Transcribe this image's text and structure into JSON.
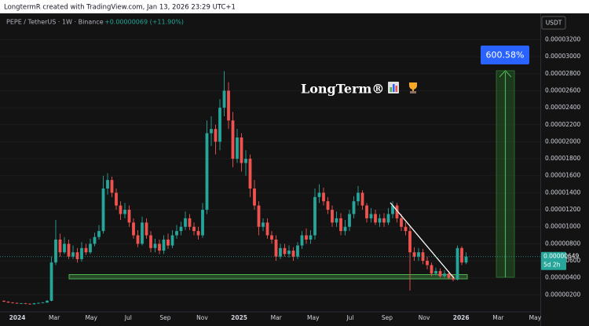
{
  "header": "LongtermR created with TradingView.com, Jan 13, 2026 23:29 UTC+1",
  "chart_data": {
    "type": "candlestick",
    "symbol": "PEPE / TetherUS · 1W · Binance",
    "change": "+0.00000069 (+11.90%)",
    "currency": "USDT",
    "watermark": "LongTerm®",
    "measure_label": "600.58%",
    "countdown": "5d 2h",
    "last_price": {
      "value": 6.49e-06,
      "label": "0.00000649"
    },
    "up_color": "#26a69a",
    "down_color": "#ef5350",
    "ylim": [
      0,
      3.5e-05
    ],
    "yticks": [
      {
        "value": 3.2e-05,
        "label": "0.00003200"
      },
      {
        "value": 3e-05,
        "label": "0.00003000"
      },
      {
        "value": 2.8e-05,
        "label": "0.00002800"
      },
      {
        "value": 2.6e-05,
        "label": "0.00002600"
      },
      {
        "value": 2.4e-05,
        "label": "0.00002400"
      },
      {
        "value": 2.2e-05,
        "label": "0.00002200"
      },
      {
        "value": 2e-05,
        "label": "0.00002000"
      },
      {
        "value": 1.8e-05,
        "label": "0.00001800"
      },
      {
        "value": 1.6e-05,
        "label": "0.00001600"
      },
      {
        "value": 1.4e-05,
        "label": "0.00001400"
      },
      {
        "value": 1.2e-05,
        "label": "0.00001200"
      },
      {
        "value": 1e-05,
        "label": "0.00001000"
      },
      {
        "value": 8e-06,
        "label": "0.00000800"
      },
      {
        "value": 6e-06,
        "label": "0.00000600"
      },
      {
        "value": 4e-06,
        "label": "0.00000400"
      },
      {
        "value": 2e-06,
        "label": "0.00000200"
      }
    ],
    "grid": true,
    "xlabels": [
      "2024",
      "Mar",
      "May",
      "Jul",
      "Sep",
      "Nov",
      "2025",
      "Mar",
      "May",
      "Jul",
      "Sep",
      "Nov",
      "2026",
      "Mar",
      "May"
    ],
    "open": [
      1.3e-06,
      1.2e-06,
      1.1e-06,
      1.05e-06,
      1e-06,
      1e-06,
      9.5e-07,
      9e-07,
      1e-06,
      1.05e-06,
      1.1e-06,
      1.3e-06,
      5.8e-06,
      8.5e-06,
      7e-06,
      8e-06,
      6.5e-06,
      7e-06,
      6.2e-06,
      7.5e-06,
      7e-06,
      8e-06,
      8.8e-06,
      9.5e-06,
      1.45e-05,
      1.55e-05,
      1.4e-05,
      1.25e-05,
      1.15e-05,
      1.2e-05,
      1.05e-05,
      9e-06,
      8e-06,
      1.05e-05,
      9e-06,
      7.5e-06,
      8e-06,
      7.2e-06,
      8.5e-06,
      7.8e-06,
      9e-06,
      9.5e-06,
      1e-05,
      1.1e-05,
      1e-05,
      9.5e-06,
      9e-06,
      1.2e-05,
      2.1e-05,
      2.15e-05,
      2e-05,
      2.4e-05,
      2.6e-05,
      2.25e-05,
      1.8e-05,
      2.05e-05,
      1.75e-05,
      1.8e-05,
      1.45e-05,
      1.25e-05,
      1e-05,
      1.05e-05,
      9e-06,
      8.5e-06,
      6.5e-06,
      7.5e-06,
      6.8e-06,
      7.2e-06,
      6.5e-06,
      7.8e-06,
      9e-06,
      8.5e-06,
      9e-06,
      1.35e-05,
      1.4e-05,
      1.3e-05,
      1.2e-05,
      1.05e-05,
      1.1e-05,
      9.5e-06,
      1e-05,
      1.15e-05,
      1.3e-05,
      1.4e-05,
      1.25e-05,
      1.1e-05,
      1.15e-05,
      1.05e-05,
      1.1e-05,
      1.05e-05,
      1.15e-05,
      1.25e-05,
      1.1e-05,
      1e-05,
      9.5e-06,
      7e-06,
      6.5e-06,
      7e-06,
      6e-06,
      5.5e-06,
      4.5e-06,
      4.8e-06,
      4.2e-06,
      4.5e-06,
      4e-06,
      3.8e-06,
      7.5e-06,
      5.8e-06
    ],
    "high": [
      1.35e-06,
      1.25e-06,
      1.15e-06,
      1.1e-06,
      1.05e-06,
      1.05e-06,
      1e-06,
      1.05e-06,
      1.1e-06,
      1.15e-06,
      1.4e-06,
      6.5e-06,
      1.08e-05,
      9.2e-06,
      8.8e-06,
      8.5e-06,
      7.8e-06,
      7.5e-06,
      8.2e-06,
      8e-06,
      8.6e-06,
      9.3e-06,
      1.02e-05,
      1.6e-05,
      1.63e-05,
      1.59e-05,
      1.45e-05,
      1.3e-05,
      1.28e-05,
      1.25e-05,
      1.1e-05,
      9.6e-06,
      1.12e-05,
      1.1e-05,
      9.5e-06,
      8.6e-06,
      8.5e-06,
      9e-06,
      9.2e-06,
      9.6e-06,
      1.02e-05,
      1.06e-05,
      1.18e-05,
      1.15e-05,
      1.05e-05,
      1e-05,
      1.28e-05,
      2.25e-05,
      2.3e-05,
      2.2e-05,
      2.5e-05,
      2.83e-05,
      2.7e-05,
      2.35e-05,
      2.15e-05,
      2.1e-05,
      1.9e-05,
      1.85e-05,
      1.55e-05,
      1.3e-05,
      1.1e-05,
      1.1e-05,
      9.5e-06,
      9e-06,
      8e-06,
      8e-06,
      7.8e-06,
      7.6e-06,
      8.2e-06,
      9.5e-06,
      9.8e-06,
      9.6e-06,
      1.45e-05,
      1.5e-05,
      1.46e-05,
      1.35e-05,
      1.25e-05,
      1.18e-05,
      1.16e-05,
      1.08e-05,
      1.2e-05,
      1.36e-05,
      1.48e-05,
      1.43e-05,
      1.28e-05,
      1.22e-05,
      1.2e-05,
      1.15e-05,
      1.16e-05,
      1.22e-05,
      1.3e-05,
      1.28e-05,
      1.15e-05,
      1.05e-05,
      1e-05,
      7.6e-06,
      7.5e-06,
      7.4e-06,
      6.5e-06,
      5.8e-06,
      5.2e-06,
      5.1e-06,
      4.9e-06,
      4.8e-06,
      4.3e-06,
      7.8e-06,
      7.7e-06,
      7e-06
    ],
    "low": [
      1.15e-06,
      1.05e-06,
      1e-06,
      9.5e-07,
      9.5e-07,
      9e-07,
      8.5e-07,
      8.5e-07,
      9.5e-07,
      1e-06,
      1.05e-06,
      1.25e-06,
      5.5e-06,
      6.5e-06,
      6.8e-06,
      6.2e-06,
      6.2e-06,
      5.8e-06,
      5.9e-06,
      6.7e-06,
      6.8e-06,
      7.7e-06,
      8.5e-06,
      9.2e-06,
      1.38e-05,
      1.35e-05,
      1.2e-05,
      1.08e-05,
      1.1e-05,
      1e-05,
      8.6e-06,
      7.6e-06,
      7.8e-06,
      8.6e-06,
      7e-06,
      7e-06,
      6.8e-06,
      6.8e-06,
      7.4e-06,
      7.5e-06,
      8.6e-06,
      9e-06,
      9.6e-06,
      9.6e-06,
      9e-06,
      8.5e-06,
      8.7e-06,
      1.15e-05,
      1.95e-05,
      1.85e-05,
      1.9e-05,
      2.3e-05,
      2.15e-05,
      1.7e-05,
      1.75e-05,
      1.65e-05,
      1.6e-05,
      1.35e-05,
      1.2e-05,
      9e-06,
      9.5e-06,
      8.6e-06,
      8e-06,
      6e-06,
      6.2e-06,
      6.5e-06,
      6.4e-06,
      6e-06,
      6.2e-06,
      7.4e-06,
      8e-06,
      8e-06,
      8.5e-06,
      1.28e-05,
      1.25e-05,
      1.15e-05,
      1e-05,
      1e-05,
      9e-06,
      9e-06,
      9.5e-06,
      1.1e-05,
      1.25e-05,
      1.2e-05,
      1.05e-05,
      1.05e-05,
      1.02e-05,
      1e-05,
      1e-05,
      1.02e-05,
      1.1e-05,
      1.05e-05,
      9.5e-06,
      9e-06,
      2.5e-06,
      6e-06,
      6e-06,
      5.6e-06,
      5e-06,
      4.2e-06,
      4.3e-06,
      4e-06,
      4e-06,
      3.8e-06,
      3.6e-06,
      3.7e-06,
      5.5e-06,
      5.6e-06
    ],
    "close": [
      1.2e-06,
      1.1e-06,
      1.05e-06,
      1e-06,
      1e-06,
      9.5e-07,
      9e-07,
      1e-06,
      1.05e-06,
      1.1e-06,
      1.3e-06,
      5.8e-06,
      8.5e-06,
      7e-06,
      8e-06,
      6.5e-06,
      7e-06,
      6.2e-06,
      7.5e-06,
      7e-06,
      8e-06,
      8.8e-06,
      9.5e-06,
      1.45e-05,
      1.55e-05,
      1.4e-05,
      1.25e-05,
      1.15e-05,
      1.2e-05,
      1.05e-05,
      9e-06,
      8e-06,
      1.05e-05,
      9e-06,
      7.5e-06,
      8e-06,
      7.2e-06,
      8.5e-06,
      7.8e-06,
      9e-06,
      9.5e-06,
      1e-05,
      1.1e-05,
      1e-05,
      9.5e-06,
      9e-06,
      1.2e-05,
      2.1e-05,
      2.15e-05,
      2e-05,
      2.4e-05,
      2.6e-05,
      2.25e-05,
      1.8e-05,
      2.05e-05,
      1.75e-05,
      1.8e-05,
      1.45e-05,
      1.25e-05,
      1e-05,
      1.05e-05,
      9e-06,
      8.5e-06,
      6.5e-06,
      7.5e-06,
      6.8e-06,
      7.2e-06,
      6.5e-06,
      7.8e-06,
      9e-06,
      8.5e-06,
      9e-06,
      1.35e-05,
      1.4e-05,
      1.3e-05,
      1.2e-05,
      1.05e-05,
      1.1e-05,
      9.5e-06,
      1e-05,
      1.15e-05,
      1.3e-05,
      1.4e-05,
      1.25e-05,
      1.1e-05,
      1.15e-05,
      1.05e-05,
      1.1e-05,
      1.05e-05,
      1.15e-05,
      1.25e-05,
      1.1e-05,
      1e-05,
      9.5e-06,
      7e-06,
      6.5e-06,
      7e-06,
      6e-06,
      5.5e-06,
      4.5e-06,
      4.8e-06,
      4.2e-06,
      4.5e-06,
      4e-06,
      3.8e-06,
      7.5e-06,
      5.8e-06,
      6.49e-06
    ]
  }
}
